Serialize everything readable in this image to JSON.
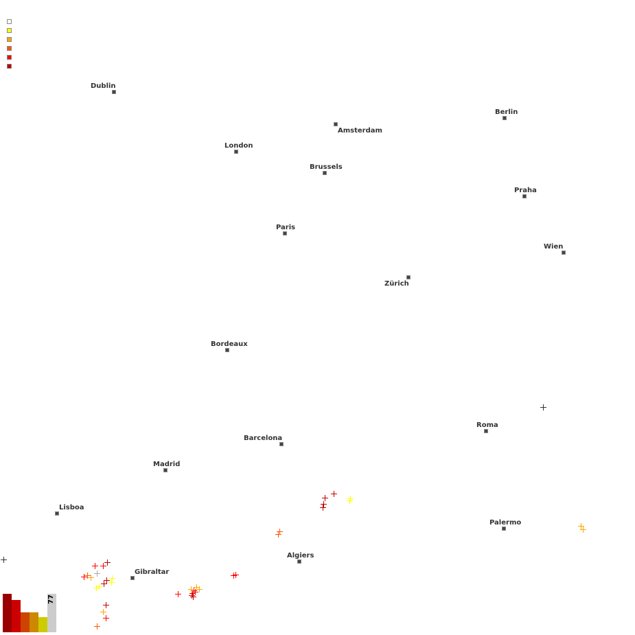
{
  "legend": {
    "colors": [
      "#ffffff",
      "#ffff00",
      "#ffa500",
      "#ff5500",
      "#ff0000",
      "#bb0000"
    ]
  },
  "cities": [
    {
      "name": "Dublin"
    },
    {
      "name": "Amsterdam"
    },
    {
      "name": "Berlin"
    },
    {
      "name": "London"
    },
    {
      "name": "Brussels"
    },
    {
      "name": "Praha"
    },
    {
      "name": "Paris"
    },
    {
      "name": "Wien"
    },
    {
      "name": "Zürich"
    },
    {
      "name": "Bordeaux"
    },
    {
      "name": "Roma"
    },
    {
      "name": "Barcelona"
    },
    {
      "name": "Madrid"
    },
    {
      "name": "Lisboa"
    },
    {
      "name": "Palermo"
    },
    {
      "name": "Algiers"
    },
    {
      "name": "Gibraltar"
    }
  ],
  "histogram": {
    "colors": [
      "#990000",
      "#cc0000",
      "#cc4400",
      "#cc8800",
      "#cccc00",
      "#cccccc"
    ],
    "total_count": "77"
  }
}
